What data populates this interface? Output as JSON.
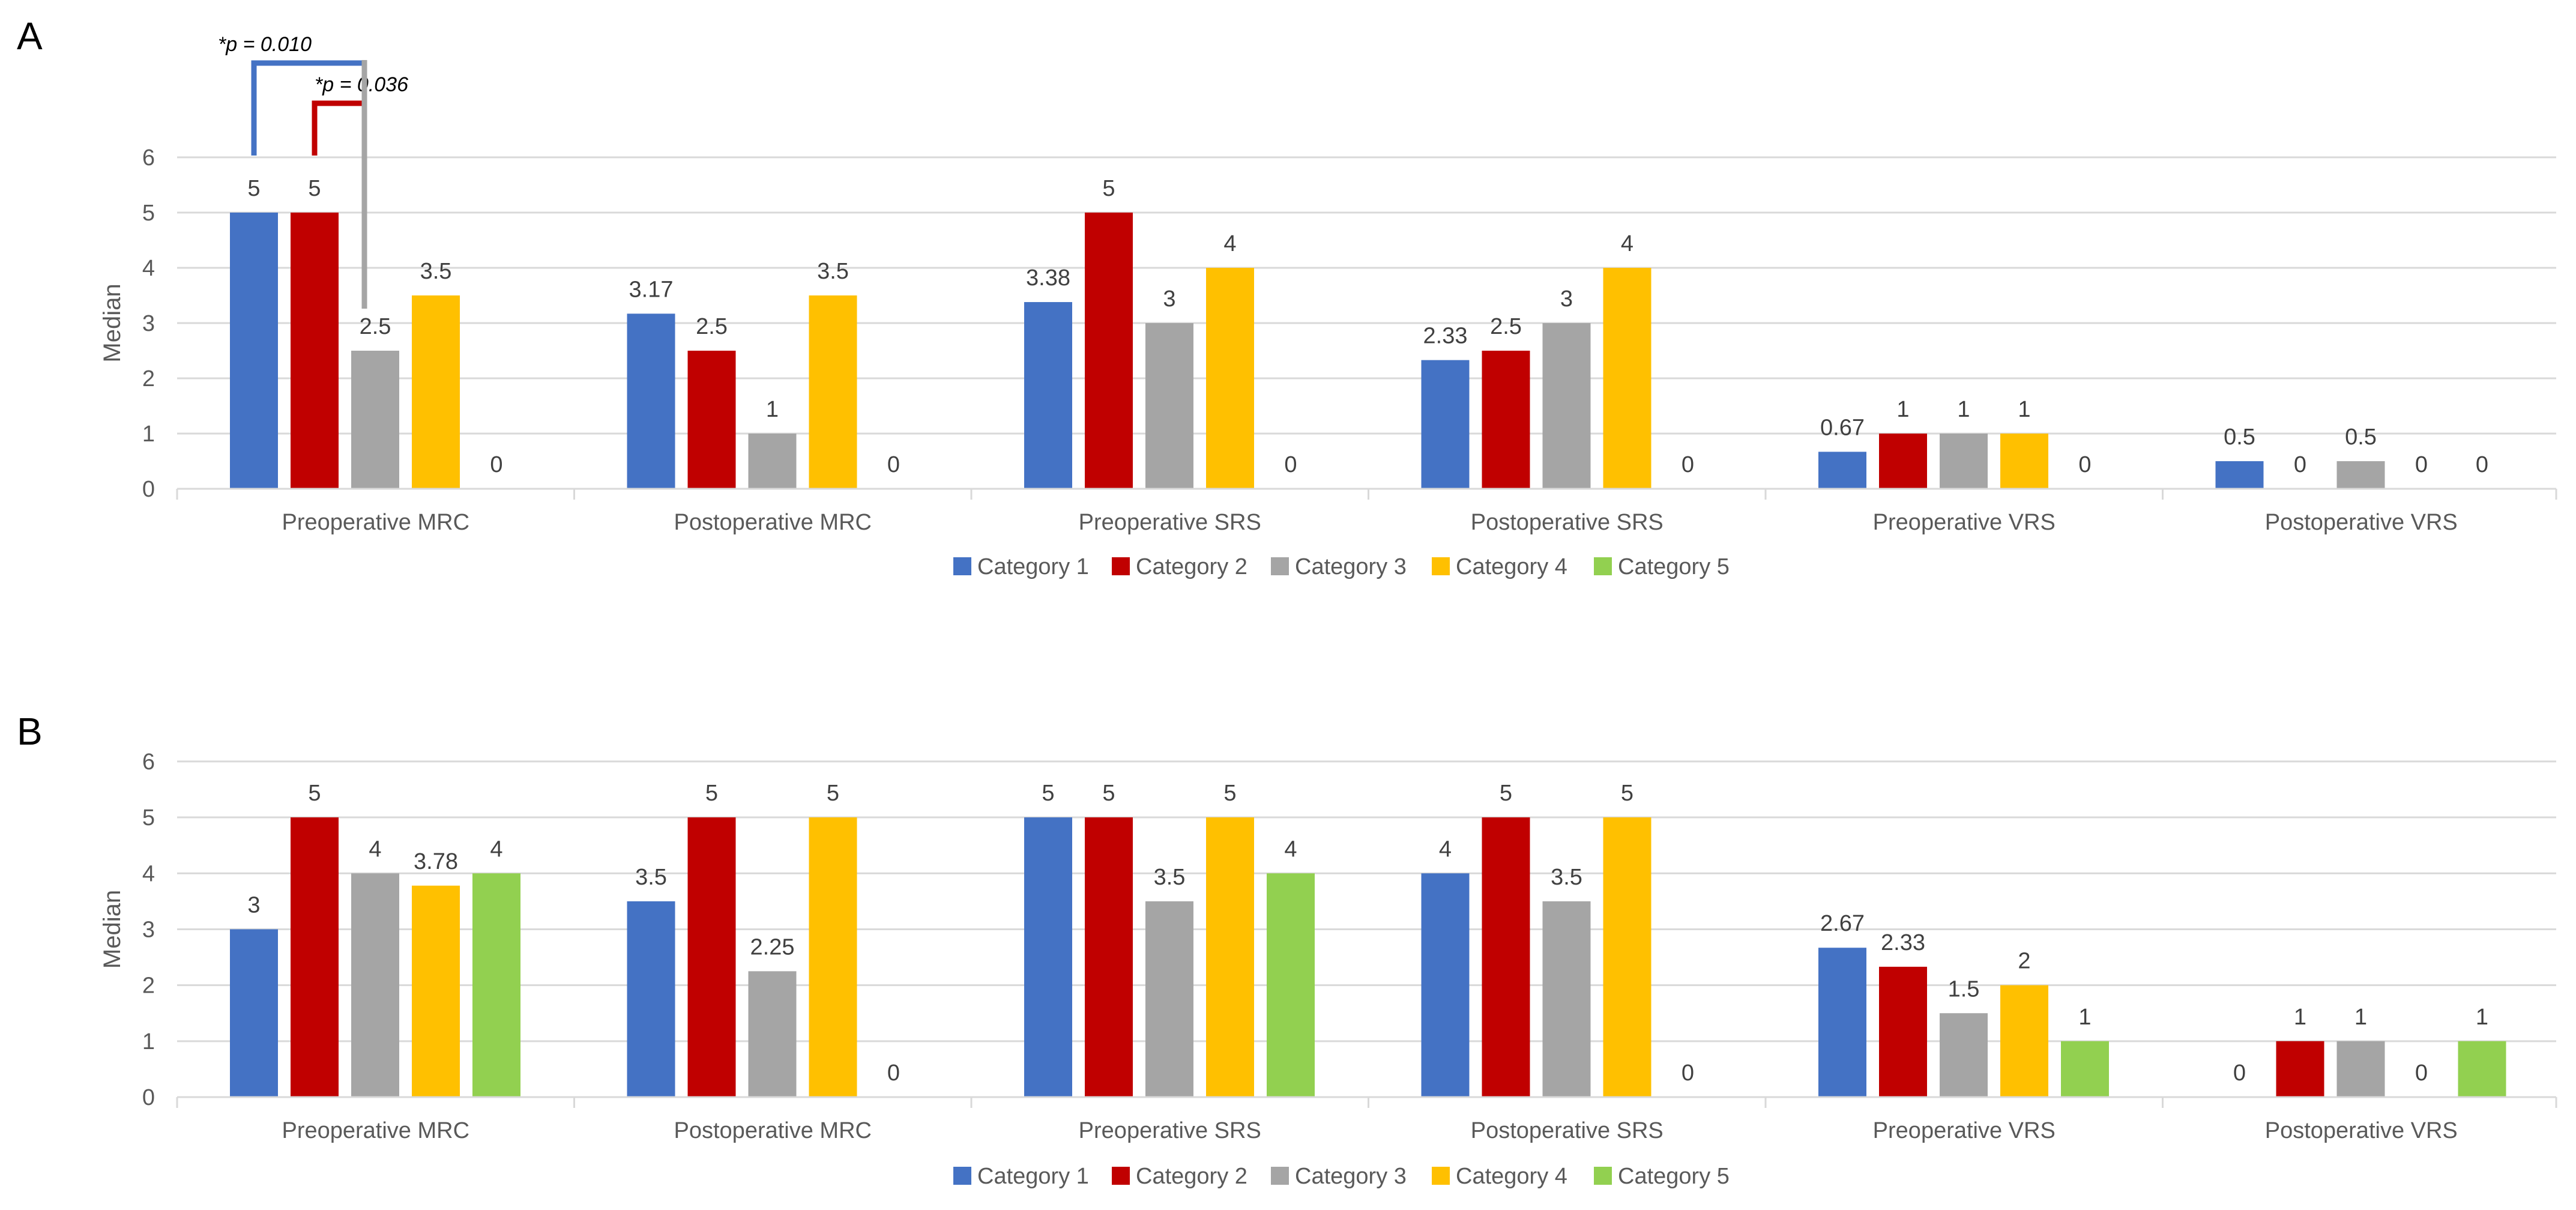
{
  "colors": {
    "Category 1": "#4472C4",
    "Category 2": "#C00000",
    "Category 3": "#A5A5A5",
    "Category 4": "#FFC000",
    "Category 5": "#92D050",
    "gridline": "#D9D9D9",
    "axis_text": "#595959"
  },
  "chart_data": [
    {
      "type": "bar",
      "panel": "A",
      "ylabel": "Median",
      "ylim": [
        0,
        6
      ],
      "yticks": [
        "0",
        "1",
        "2",
        "3",
        "4",
        "5",
        "6"
      ],
      "grid": true,
      "legend": "bottom",
      "categories": [
        "Preoperative MRC",
        "Postoperative MRC",
        "Preoperative SRS",
        "Postoperative SRS",
        "Preoperative VRS",
        "Postoperative VRS"
      ],
      "series": [
        {
          "name": "Category 1",
          "values": [
            5,
            3.17,
            3.38,
            2.33,
            0.67,
            0.5
          ],
          "labels": [
            "5",
            "3.17",
            "3.38",
            "2.33",
            "0.67",
            "0.5"
          ]
        },
        {
          "name": "Category 2",
          "values": [
            5,
            2.5,
            5,
            2.5,
            1,
            0
          ],
          "labels": [
            "5",
            "2.5",
            "5",
            "2.5",
            "1",
            "0"
          ]
        },
        {
          "name": "Category 3",
          "values": [
            2.5,
            1,
            3,
            3,
            1,
            0.5
          ],
          "labels": [
            "2.5",
            "1",
            "3",
            "3",
            "1",
            "0.5"
          ]
        },
        {
          "name": "Category 4",
          "values": [
            3.5,
            3.5,
            4,
            4,
            1,
            0
          ],
          "labels": [
            "3.5",
            "3.5",
            "4",
            "4",
            "1",
            "0"
          ]
        },
        {
          "name": "Category 5",
          "values": [
            0,
            0,
            0,
            0,
            0,
            0
          ],
          "labels": [
            "0",
            "0",
            "0",
            "0",
            "0",
            "0"
          ]
        }
      ],
      "annotations": [
        {
          "text": "*p = 0.010",
          "from_series": "Category 1",
          "to_series": "Category 3",
          "category": "Preoperative MRC",
          "color": "#4472C4"
        },
        {
          "text": "*p = 0.036",
          "from_series": "Category 2",
          "to_series": "Category 3",
          "category": "Preoperative MRC",
          "color": "#C00000"
        }
      ]
    },
    {
      "type": "bar",
      "panel": "B",
      "ylabel": "Median",
      "ylim": [
        0,
        6
      ],
      "yticks": [
        "0",
        "1",
        "2",
        "3",
        "4",
        "5",
        "6"
      ],
      "grid": true,
      "legend": "bottom",
      "categories": [
        "Preoperative MRC",
        "Postoperative MRC",
        "Preoperative SRS",
        "Postoperative SRS",
        "Preoperative VRS",
        "Postoperative VRS"
      ],
      "series": [
        {
          "name": "Category 1",
          "values": [
            3,
            3.5,
            5,
            4,
            2.67,
            0
          ],
          "labels": [
            "3",
            "3.5",
            "5",
            "4",
            "2.67",
            "0"
          ]
        },
        {
          "name": "Category 2",
          "values": [
            5,
            5,
            5,
            5,
            2.33,
            1
          ],
          "labels": [
            "5",
            "5",
            "5",
            "5",
            "2.33",
            "1"
          ]
        },
        {
          "name": "Category 3",
          "values": [
            4,
            2.25,
            3.5,
            3.5,
            1.5,
            1
          ],
          "labels": [
            "4",
            "2.25",
            "3.5",
            "3.5",
            "1.5",
            "1"
          ]
        },
        {
          "name": "Category 4",
          "values": [
            3.78,
            5,
            5,
            5,
            2,
            0
          ],
          "labels": [
            "3.78",
            "5",
            "5",
            "5",
            "2",
            "0"
          ]
        },
        {
          "name": "Category 5",
          "values": [
            4,
            0,
            4,
            0,
            1,
            1
          ],
          "labels": [
            "4",
            "0",
            "4",
            "0",
            "1",
            "1"
          ]
        }
      ],
      "annotations": []
    }
  ]
}
